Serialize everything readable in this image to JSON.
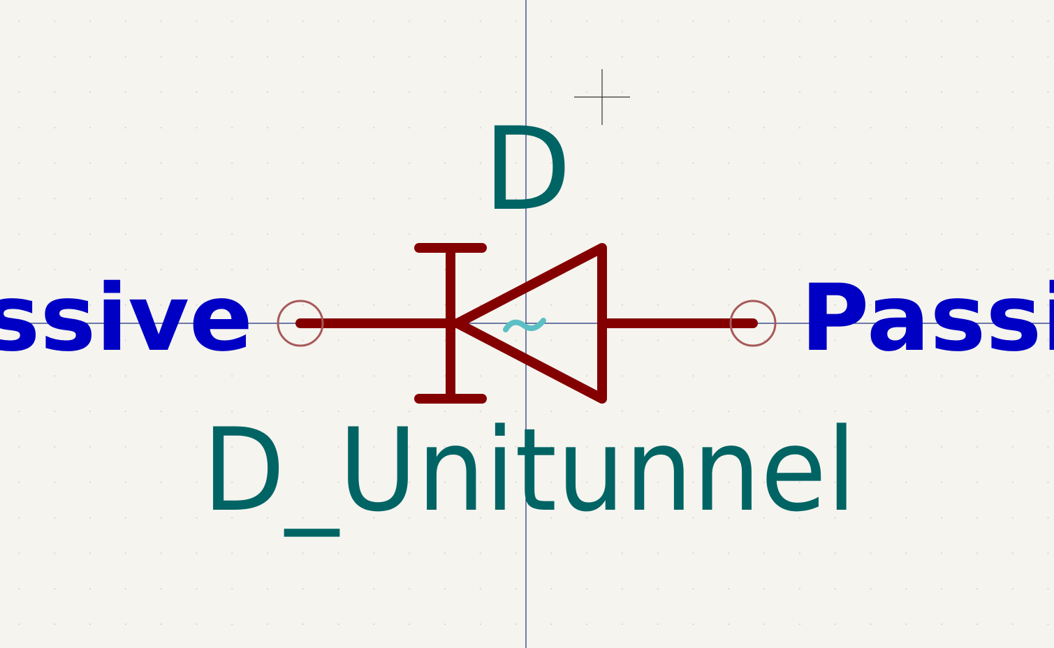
{
  "symbol": {
    "reference": "D",
    "value": "D_Unitunnel",
    "pin_left_type": "Passive",
    "pin_right_type": "Passive"
  },
  "colors": {
    "background": "#f5f4ef",
    "grid_dot": "#d6d5cf",
    "axis": "#1e2e7a",
    "body": "#840000",
    "pin_circle": "#a85858",
    "field_text": "#006464",
    "pin_type_text": "#0000c4",
    "anchor": "#5bbfc4",
    "cursor": "#333333"
  }
}
